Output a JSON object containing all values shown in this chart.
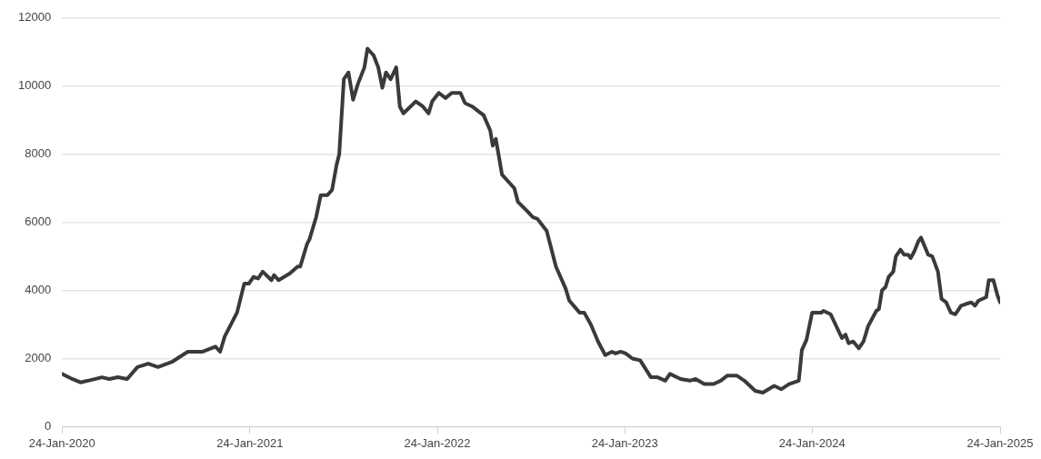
{
  "chart_data": {
    "type": "line",
    "x": [
      "2020-01-24",
      "2020-02-13",
      "2020-02-29",
      "2020-03-15",
      "2020-04-11",
      "2020-04-25",
      "2020-05-12",
      "2020-05-30",
      "2020-06-19",
      "2020-07-10",
      "2020-07-29",
      "2020-08-25",
      "2020-09-25",
      "2020-10-24",
      "2020-11-18",
      "2020-11-27",
      "2020-12-06",
      "2020-12-30",
      "2021-01-13",
      "2021-01-22",
      "2021-01-31",
      "2021-02-09",
      "2021-02-18",
      "2021-03-07",
      "2021-03-12",
      "2021-03-21",
      "2021-04-12",
      "2021-04-27",
      "2021-05-02",
      "2021-05-15",
      "2021-05-20",
      "2021-06-02",
      "2021-06-11",
      "2021-06-24",
      "2021-07-03",
      "2021-07-12",
      "2021-07-17",
      "2021-07-26",
      "2021-08-04",
      "2021-08-13",
      "2021-08-22",
      "2021-09-04",
      "2021-09-10",
      "2021-09-22",
      "2021-10-01",
      "2021-10-09",
      "2021-10-16",
      "2021-10-25",
      "2021-11-05",
      "2021-11-12",
      "2021-11-19",
      "2021-12-13",
      "2021-12-27",
      "2022-01-07",
      "2022-01-14",
      "2022-01-27",
      "2022-02-09",
      "2022-02-21",
      "2022-03-10",
      "2022-03-19",
      "2022-04-02",
      "2022-04-15",
      "2022-04-24",
      "2022-05-07",
      "2022-05-12",
      "2022-05-18",
      "2022-05-30",
      "2022-06-08",
      "2022-06-23",
      "2022-06-30",
      "2022-07-20",
      "2022-07-29",
      "2022-08-07",
      "2022-08-25",
      "2022-09-12",
      "2022-10-01",
      "2022-10-08",
      "2022-10-28",
      "2022-11-06",
      "2022-11-19",
      "2022-12-03",
      "2022-12-17",
      "2022-12-30",
      "2023-01-06",
      "2023-01-16",
      "2023-01-26",
      "2023-02-08",
      "2023-02-23",
      "2023-03-16",
      "2023-03-29",
      "2023-04-13",
      "2023-04-22",
      "2023-05-13",
      "2023-05-31",
      "2023-06-11",
      "2023-06-28",
      "2023-07-16",
      "2023-07-30",
      "2023-08-12",
      "2023-08-30",
      "2023-09-14",
      "2023-10-05",
      "2023-10-20",
      "2023-11-11",
      "2023-11-25",
      "2023-12-10",
      "2023-12-29",
      "2024-01-04",
      "2024-01-13",
      "2024-01-24",
      "2024-02-11",
      "2024-02-15",
      "2024-02-29",
      "2024-03-22",
      "2024-03-29",
      "2024-04-04",
      "2024-04-13",
      "2024-04-24",
      "2024-05-03",
      "2024-05-12",
      "2024-05-28",
      "2024-06-02",
      "2024-06-08",
      "2024-06-15",
      "2024-06-21",
      "2024-06-30",
      "2024-07-05",
      "2024-07-14",
      "2024-07-21",
      "2024-07-29",
      "2024-08-03",
      "2024-08-10",
      "2024-08-18",
      "2024-08-23",
      "2024-09-06",
      "2024-09-14",
      "2024-09-25",
      "2024-10-02",
      "2024-10-11",
      "2024-10-20",
      "2024-10-29",
      "2024-11-09",
      "2024-11-18",
      "2024-11-29",
      "2024-12-06",
      "2024-12-13",
      "2024-12-28",
      "2025-01-02",
      "2025-01-11",
      "2025-01-19",
      "2025-01-24"
    ],
    "values": [
      1550,
      1400,
      1300,
      1350,
      1450,
      1400,
      1450,
      1400,
      1750,
      1850,
      1750,
      1900,
      2200,
      2200,
      2350,
      2200,
      2650,
      3350,
      4200,
      4200,
      4400,
      4350,
      4550,
      4300,
      4450,
      4300,
      4500,
      4700,
      4700,
      5350,
      5500,
      6150,
      6800,
      6800,
      6950,
      7700,
      8000,
      10200,
      10400,
      9600,
      10050,
      10550,
      11100,
      10900,
      10550,
      9950,
      10400,
      10200,
      10550,
      9400,
      9200,
      9550,
      9400,
      9200,
      9550,
      9800,
      9650,
      9800,
      9800,
      9500,
      9400,
      9250,
      9150,
      8700,
      8250,
      8450,
      7400,
      7250,
      7000,
      6600,
      6300,
      6150,
      6100,
      5750,
      4700,
      4050,
      3700,
      3350,
      3350,
      3000,
      2500,
      2100,
      2200,
      2150,
      2200,
      2150,
      2000,
      1950,
      1450,
      1450,
      1350,
      1550,
      1400,
      1350,
      1400,
      1250,
      1250,
      1350,
      1500,
      1500,
      1350,
      1050,
      1000,
      1200,
      1100,
      1250,
      1350,
      2250,
      2550,
      3350,
      3350,
      3400,
      3300,
      2600,
      2700,
      2450,
      2500,
      2300,
      2500,
      2950,
      3400,
      3450,
      4000,
      4100,
      4400,
      4550,
      5000,
      5200,
      5050,
      5050,
      4950,
      5150,
      5450,
      5550,
      5050,
      5000,
      4550,
      3750,
      3650,
      3350,
      3300,
      3550,
      3600,
      3650,
      3550,
      3700,
      3800,
      4300,
      4300,
      3850,
      3650
    ],
    "color": "#3a3a3a",
    "xlim": [
      "2020-01-24",
      "2025-01-24"
    ],
    "xticks": [
      {
        "value": "2020-01-24",
        "label": "24-Jan-2020"
      },
      {
        "value": "2021-01-24",
        "label": "24-Jan-2021"
      },
      {
        "value": "2022-01-24",
        "label": "24-Jan-2022"
      },
      {
        "value": "2023-01-24",
        "label": "24-Jan-2023"
      },
      {
        "value": "2024-01-24",
        "label": "24-Jan-2024"
      },
      {
        "value": "2025-01-24",
        "label": "24-Jan-2025"
      }
    ],
    "ylim": [
      0,
      12000
    ],
    "yticks": [
      0,
      2000,
      4000,
      6000,
      8000,
      10000,
      12000
    ],
    "grid": "y",
    "marker": "none",
    "line_style": "solid"
  }
}
